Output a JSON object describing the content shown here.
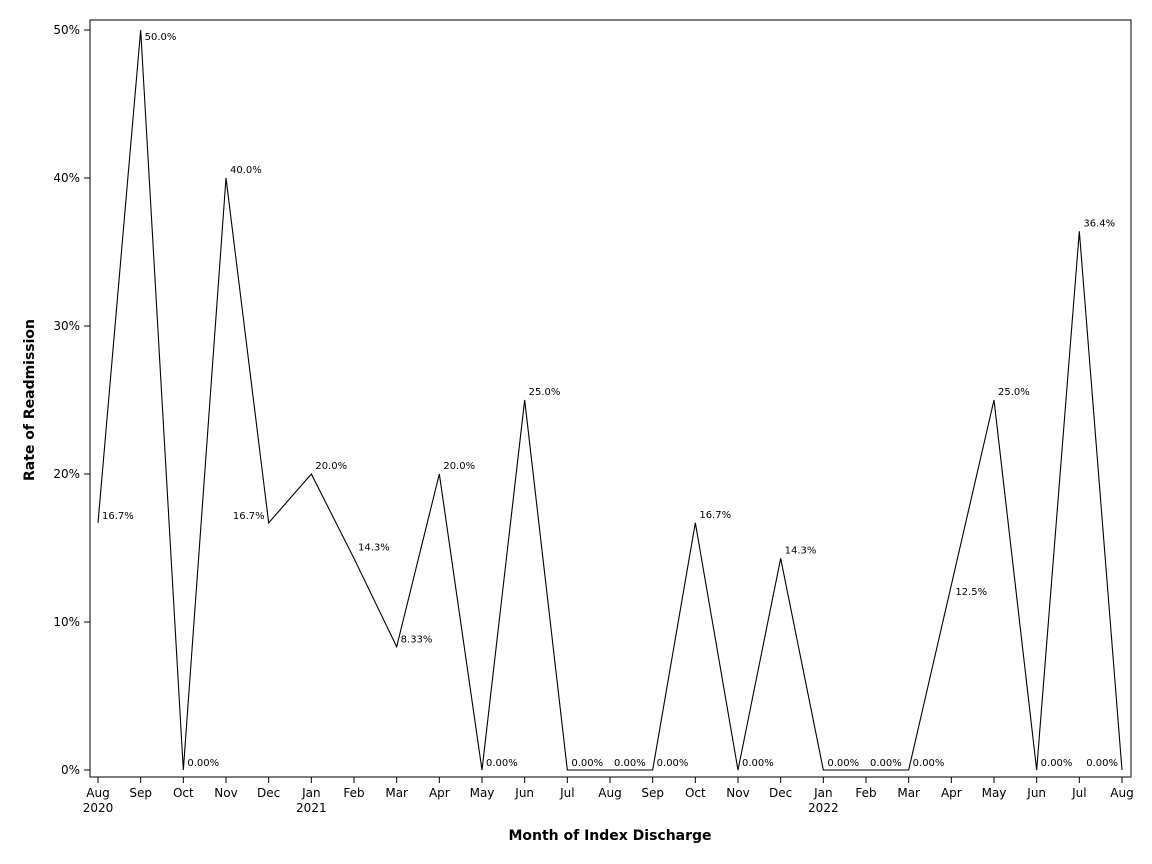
{
  "chart_data": {
    "type": "line",
    "xlabel": "Month of Index Discharge",
    "ylabel": "Rate of Readmission",
    "ylim": [
      0,
      50
    ],
    "y_ticks": [
      0,
      10,
      20,
      30,
      40,
      50
    ],
    "y_tick_labels": [
      "0%",
      "10%",
      "20%",
      "30%",
      "40%",
      "50%"
    ],
    "x_tick_labels": [
      "Aug",
      "Sep",
      "Oct",
      "Nov",
      "Dec",
      "Jan",
      "Feb",
      "Mar",
      "Apr",
      "May",
      "Jun",
      "Jul",
      "Aug",
      "Sep",
      "Oct",
      "Nov",
      "Dec",
      "Jan",
      "Feb",
      "Mar",
      "Apr",
      "May",
      "Jun",
      "Jul",
      "Aug"
    ],
    "year_labels": [
      {
        "index": 0,
        "label": "2020"
      },
      {
        "index": 5,
        "label": "2021"
      },
      {
        "index": 17,
        "label": "2022"
      }
    ],
    "grid": false,
    "series": [
      {
        "values": [
          16.7,
          50.0,
          0.0,
          40.0,
          16.7,
          20.0,
          14.3,
          8.33,
          20.0,
          0.0,
          25.0,
          0.0,
          0.0,
          0.0,
          16.7,
          0.0,
          14.3,
          0.0,
          0.0,
          0.0,
          12.5,
          25.0,
          0.0,
          36.4,
          0.0
        ],
        "data_labels": [
          "16.7%",
          "50.0%",
          "0.00%",
          "40.0%",
          "16.7%",
          "20.0%",
          "14.3%",
          "8.33%",
          "20.0%",
          "0.00%",
          "25.0%",
          "0.00%",
          "0.00%",
          "0.00%",
          "16.7%",
          "0.00%",
          "14.3%",
          "0.00%",
          "0.00%",
          "0.00%",
          "12.5%",
          "25.0%",
          "0.00%",
          "36.4%",
          "0.00%"
        ]
      }
    ]
  }
}
